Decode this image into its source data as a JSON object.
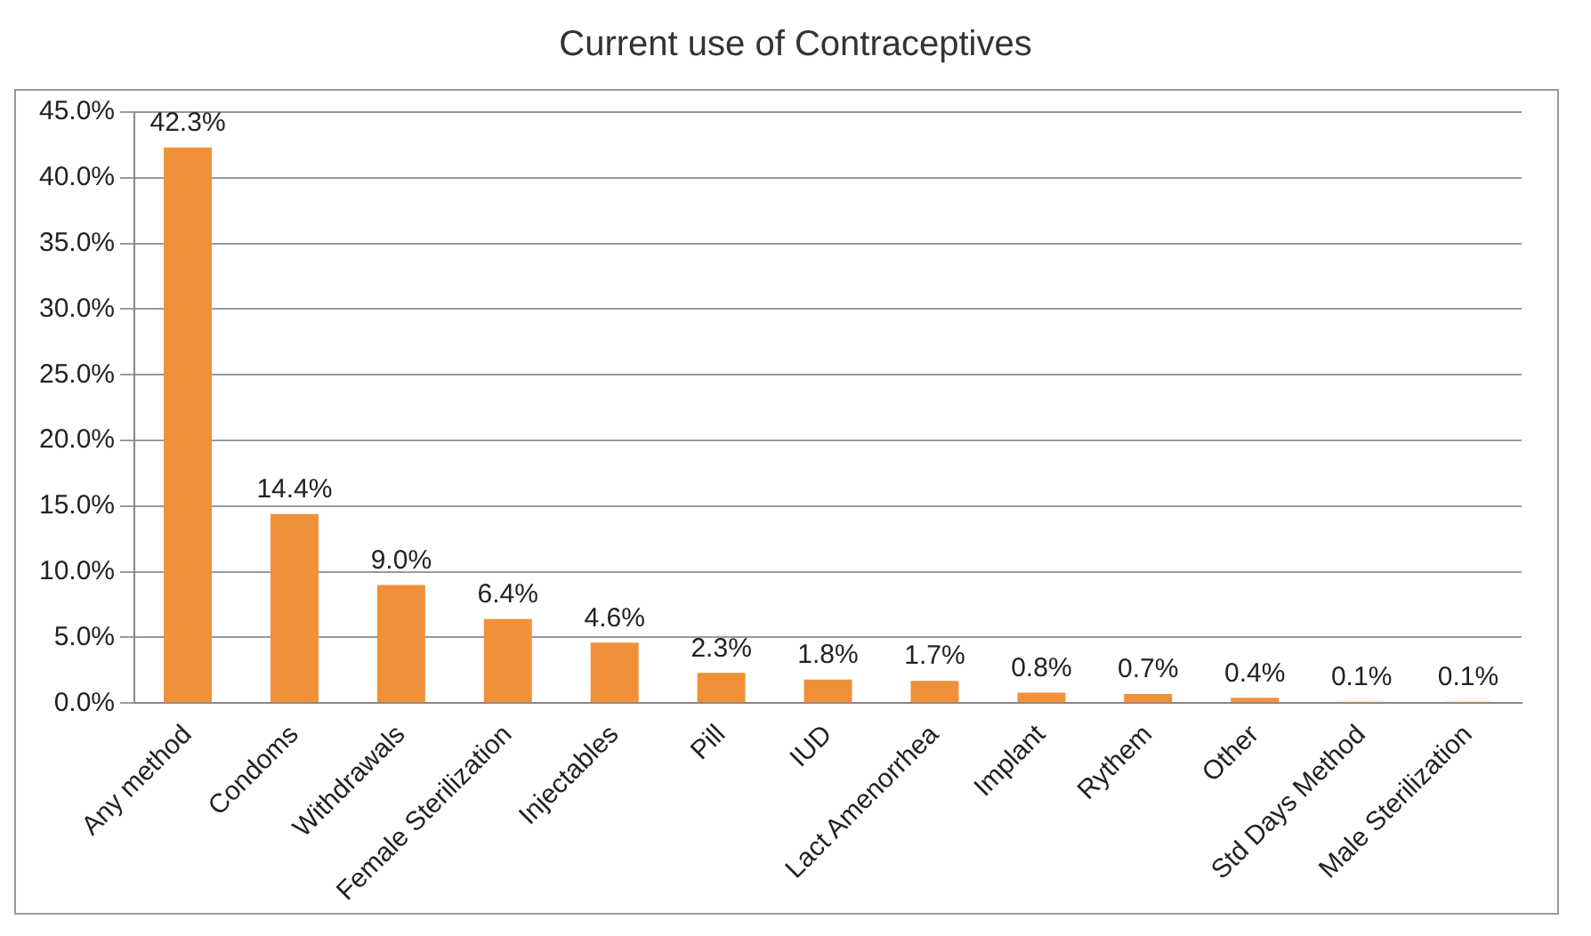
{
  "chart_data": {
    "type": "bar",
    "title": "Current use of Contraceptives",
    "categories": [
      "Any method",
      "Condoms",
      "Withdrawals",
      "Female Sterilization",
      "Injectables",
      "Pill",
      "IUD",
      "Lact Amenorrhea",
      "Implant",
      "Rythem",
      "Other",
      "Std Days Method",
      "Male Sterilization"
    ],
    "values": [
      42.3,
      14.4,
      9.0,
      6.4,
      4.6,
      2.3,
      1.8,
      1.7,
      0.8,
      0.7,
      0.4,
      0.1,
      0.1
    ],
    "value_labels": [
      "42.3%",
      "14.4%",
      "9.0%",
      "6.4%",
      "4.6%",
      "2.3%",
      "1.8%",
      "1.7%",
      "0.8%",
      "0.7%",
      "0.4%",
      "0.1%",
      "0.1%"
    ],
    "color": "#f0913a",
    "ylim": [
      0,
      45
    ],
    "yticks": [
      {
        "value": 0,
        "label": "0.0%"
      },
      {
        "value": 5,
        "label": "5.0%"
      },
      {
        "value": 10,
        "label": "10.0%"
      },
      {
        "value": 15,
        "label": "15.0%"
      },
      {
        "value": 20,
        "label": "20.0%"
      },
      {
        "value": 25,
        "label": "25.0%"
      },
      {
        "value": 30,
        "label": "30.0%"
      },
      {
        "value": 35,
        "label": "35.0%"
      },
      {
        "value": 40,
        "label": "40.0%"
      },
      {
        "value": 45,
        "label": "45.0%"
      }
    ],
    "grid": "y",
    "legend": false
  }
}
